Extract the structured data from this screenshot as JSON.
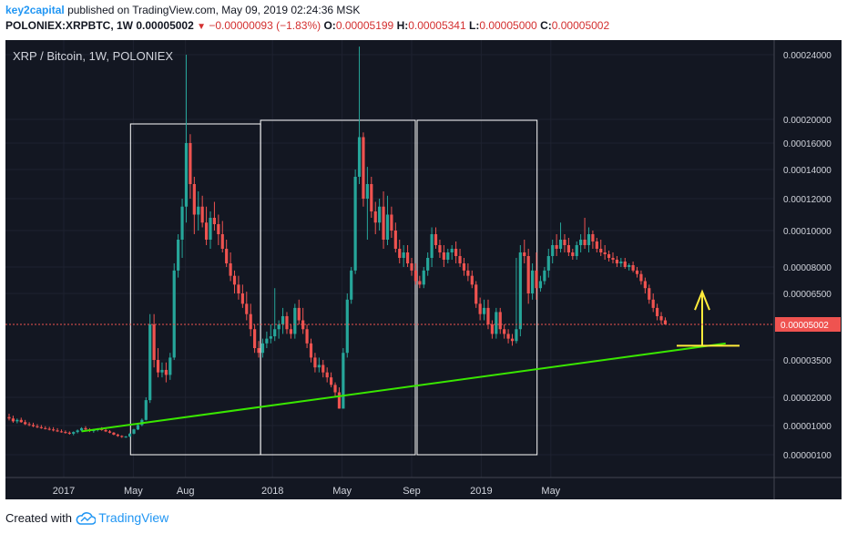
{
  "header": {
    "author": "key2capital",
    "published_text": "published on TradingView.com, May 09, 2019 02:24:36 MSK",
    "symbol": "POLONIEX:XRPBTC, 1W",
    "last": "0.00005002",
    "change": "−0.00000093 (−1.83%)",
    "open_label": "O:",
    "open": "0.00005199",
    "high_label": "H:",
    "high": "0.00005341",
    "low_label": "L:",
    "low": "0.00005000",
    "close_label": "C:",
    "close": "0.00005002"
  },
  "footer": {
    "created_with": "Created with",
    "brand": "TradingView"
  },
  "colors": {
    "background": "#131722",
    "up": "#26a69a",
    "down": "#ef5350",
    "trendline": "#39e600",
    "box": "#ffffff",
    "support": "#ffeb3b",
    "price_tag": "#ef5350"
  },
  "chart_data": {
    "type": "candlestick",
    "title": "XRP / Bitcoin, 1W, POLONIEX",
    "current_price_label": "0.00005002",
    "y_tick_labels": [
      "0.00024000",
      "0.00020000",
      "0.00016000",
      "0.00014000",
      "0.00012000",
      "0.00010000",
      "0.00008000",
      "0.00006500",
      "0.00003500",
      "0.00002000",
      "0.00001000",
      "0.00000100"
    ],
    "x_tick_labels": [
      "2017",
      "May",
      "Aug",
      "2018",
      "May",
      "Sep",
      "2019",
      "May"
    ],
    "candles": [
      [
        1.3e-05,
        1.42e-05,
        1.18e-05,
        1.25e-05
      ],
      [
        1.25e-05,
        1.35e-05,
        1.1e-05,
        1.15e-05
      ],
      [
        1.15e-05,
        1.25e-05,
        1.08e-05,
        1.2e-05
      ],
      [
        1.2e-05,
        1.28e-05,
        1.1e-05,
        1.12e-05
      ],
      [
        1.12e-05,
        1.2e-05,
        1.02e-05,
        1.05e-05
      ],
      [
        1.05e-05,
        1.12e-05,
        9.8e-06,
        1.02e-05
      ],
      [
        1.02e-05,
        1.1e-05,
        9.5e-06,
        9.8e-06
      ],
      [
        9.8e-06,
        1.05e-05,
        9.2e-06,
        9.5e-06
      ],
      [
        9.5e-06,
        1.02e-05,
        9e-06,
        9.2e-06
      ],
      [
        9.2e-06,
        9.8e-06,
        8.8e-06,
        9e-06
      ],
      [
        9e-06,
        9.6e-06,
        8.5e-06,
        8.8e-06
      ],
      [
        8.8e-06,
        9.5e-06,
        8.2e-06,
        8.5e-06
      ],
      [
        8.5e-06,
        9.2e-06,
        8e-06,
        8.2e-06
      ],
      [
        8.2e-06,
        8.8e-06,
        7.8e-06,
        8e-06
      ],
      [
        8e-06,
        8.5e-06,
        7.5e-06,
        7.8e-06
      ],
      [
        7.8e-06,
        8.2e-06,
        7.2e-06,
        7.5e-06
      ],
      [
        7.5e-06,
        8.2e-06,
        7e-06,
        8e-06
      ],
      [
        8e-06,
        8.8e-06,
        7.6e-06,
        8.5e-06
      ],
      [
        8.5e-06,
        9.5e-06,
        8.2e-06,
        9.2e-06
      ],
      [
        9.2e-06,
        9.8e-06,
        8.6e-06,
        8.8e-06
      ],
      [
        8.8e-06,
        9.2e-06,
        8e-06,
        8.3e-06
      ],
      [
        8.3e-06,
        9e-06,
        7.8e-06,
        8.6e-06
      ],
      [
        8.6e-06,
        9.2e-06,
        8.2e-06,
        9e-06
      ],
      [
        9e-06,
        9.5e-06,
        8.4e-06,
        8.6e-06
      ],
      [
        8.6e-06,
        9e-06,
        8e-06,
        8.2e-06
      ],
      [
        8.2e-06,
        8.6e-06,
        7.6e-06,
        7.8e-06
      ],
      [
        7.8e-06,
        8e-06,
        7e-06,
        7.2e-06
      ],
      [
        7.2e-06,
        7.5e-06,
        6.5e-06,
        6.8e-06
      ],
      [
        6.8e-06,
        7e-06,
        6.2e-06,
        6.5e-06
      ],
      [
        6.5e-06,
        6.8e-06,
        6.2e-06,
        6.6e-06
      ],
      [
        6.6e-06,
        7.8e-06,
        6.4e-06,
        7.5e-06
      ],
      [
        7.5e-06,
        9e-06,
        7.3e-06,
        8.8e-06
      ],
      [
        8.8e-06,
        1.05e-05,
        8.6e-06,
        1.02e-05
      ],
      [
        1.02e-05,
        1.25e-05,
        9.8e-06,
        1.2e-05
      ],
      [
        1.2e-05,
        2e-05,
        1.18e-05,
        1.9e-05
      ],
      [
        1.9e-05,
        5.5e-05,
        1.8e-05,
        5e-05
      ],
      [
        5e-05,
        5.5e-05,
        3.2e-05,
        3.5e-05
      ],
      [
        3.5e-05,
        4e-05,
        2.8e-05,
        3e-05
      ],
      [
        3e-05,
        3.4e-05,
        2.8e-05,
        3.1e-05
      ],
      [
        3.1e-05,
        3.4e-05,
        2.6e-05,
        2.9e-05
      ],
      [
        2.9e-05,
        3.8e-05,
        2.7e-05,
        3.6e-05
      ],
      [
        3.6e-05,
        8.2e-05,
        3.5e-05,
        7.8e-05
      ],
      [
        7.8e-05,
        9.8e-05,
        7.4e-05,
        9.5e-05
      ],
      [
        9.5e-05,
        0.00012,
        8.5e-05,
        0.000115
      ],
      [
        0.000115,
        0.00024,
        0.000105,
        0.00016
      ],
      [
        0.00016,
        0.000175,
        0.00012,
        0.00013
      ],
      [
        0.00013,
        0.000135,
        9.8e-05,
        0.00011
      ],
      [
        0.00011,
        0.000125,
        0.0001,
        0.000115
      ],
      [
        0.000115,
        0.000122,
        0.000102,
        0.000105
      ],
      [
        0.000105,
        0.000115,
        9.2e-05,
        9.5e-05
      ],
      [
        9.5e-05,
        0.000112,
        9e-05,
        0.000108
      ],
      [
        0.000108,
        0.000118,
        0.0001,
        0.000104
      ],
      [
        0.000104,
        0.00011,
        9.2e-05,
        9.8e-05
      ],
      [
        9.8e-05,
        0.000106,
        8.8e-05,
        9e-05
      ],
      [
        9e-05,
        9.5e-05,
        8e-05,
        8.2e-05
      ],
      [
        8.2e-05,
        8.8e-05,
        7.2e-05,
        7.5e-05
      ],
      [
        7.5e-05,
        7.8e-05,
        6.5e-05,
        7e-05
      ],
      [
        7e-05,
        7.5e-05,
        6.2e-05,
        6.5e-05
      ],
      [
        6.5e-05,
        7e-05,
        5.8e-05,
        6e-05
      ],
      [
        6e-05,
        6.6e-05,
        5.2e-05,
        5.5e-05
      ],
      [
        5.5e-05,
        6e-05,
        4.5e-05,
        4.8e-05
      ],
      [
        4.8e-05,
        5e-05,
        3.8e-05,
        4e-05
      ],
      [
        4e-05,
        4.3e-05,
        3.6e-05,
        3.8e-05
      ],
      [
        3.8e-05,
        4.4e-05,
        3.6e-05,
        4.2e-05
      ],
      [
        4.2e-05,
        4.7e-05,
        4e-05,
        4.4e-05
      ],
      [
        4.4e-05,
        5e-05,
        4.2e-05,
        4.5e-05
      ],
      [
        4.5e-05,
        6.8e-05,
        4.3e-05,
        4.8e-05
      ],
      [
        4.8e-05,
        5.2e-05,
        4.4e-05,
        5e-05
      ],
      [
        5e-05,
        5.8e-05,
        4.6e-05,
        5.4e-05
      ],
      [
        5.4e-05,
        5.6e-05,
        4.6e-05,
        4.8e-05
      ],
      [
        4.8e-05,
        5e-05,
        4.4e-05,
        4.6e-05
      ],
      [
        4.6e-05,
        6e-05,
        4.4e-05,
        5.8e-05
      ],
      [
        5.8e-05,
        6.2e-05,
        5e-05,
        5.2e-05
      ],
      [
        5.2e-05,
        5.8e-05,
        4.6e-05,
        4.8e-05
      ],
      [
        4.8e-05,
        5e-05,
        4e-05,
        4.2e-05
      ],
      [
        4.2e-05,
        4.4e-05,
        3.4e-05,
        3.6e-05
      ],
      [
        3.6e-05,
        3.8e-05,
        3e-05,
        3.2e-05
      ],
      [
        3.2e-05,
        3.6e-05,
        3e-05,
        3.3e-05
      ],
      [
        3.3e-05,
        3.5e-05,
        2.8e-05,
        3e-05
      ],
      [
        3e-05,
        3.2e-05,
        2.6e-05,
        2.8e-05
      ],
      [
        2.8e-05,
        3e-05,
        2.4e-05,
        2.5e-05
      ],
      [
        2.5e-05,
        2.6e-05,
        2e-05,
        2.2e-05
      ],
      [
        2.2e-05,
        2.4e-05,
        1.6e-05,
        1.6e-05
      ],
      [
        1.6e-05,
        4e-05,
        1.6e-05,
        3.8e-05
      ],
      [
        3.8e-05,
        6.5e-05,
        3.6e-05,
        6.2e-05
      ],
      [
        6.2e-05,
        8e-05,
        6e-05,
        7.8e-05
      ],
      [
        7.8e-05,
        0.00014,
        7.6e-05,
        0.000135
      ],
      [
        0.000135,
        0.000245,
        0.00013,
        0.00017
      ],
      [
        0.00017,
        0.000178,
        0.000115,
        0.00012
      ],
      [
        0.00012,
        0.000142,
        9.5e-05,
        0.00013
      ],
      [
        0.00013,
        0.000135,
        0.000108,
        0.000112
      ],
      [
        0.000112,
        0.000118,
        9.8e-05,
        0.000105
      ],
      [
        0.000105,
        0.00012,
        0.0001,
        0.000115
      ],
      [
        0.000115,
        0.000125,
        9e-05,
        9.5e-05
      ],
      [
        9.5e-05,
        0.000122,
        9.2e-05,
        0.00011
      ],
      [
        0.00011,
        0.000115,
        9.6e-05,
        0.0001
      ],
      [
        0.0001,
        0.000105,
        8.8e-05,
        9e-05
      ],
      [
        9e-05,
        9.5e-05,
        8.2e-05,
        8.5e-05
      ],
      [
        8.5e-05,
        9.2e-05,
        8e-05,
        8.8e-05
      ],
      [
        8.8e-05,
        9.2e-05,
        8e-05,
        8.2e-05
      ],
      [
        8.2e-05,
        8.5e-05,
        7.5e-05,
        7.8e-05
      ],
      [
        7.8e-05,
        8.2e-05,
        7e-05,
        7.2e-05
      ],
      [
        7.2e-05,
        7.5e-05,
        6.8e-05,
        7e-05
      ],
      [
        7e-05,
        8e-05,
        6.8e-05,
        7.8e-05
      ],
      [
        7.8e-05,
        8.8e-05,
        7.5e-05,
        8.5e-05
      ],
      [
        8.5e-05,
        0.000102,
        8e-05,
        9.8e-05
      ],
      [
        9.8e-05,
        0.000102,
        9e-05,
        9.2e-05
      ],
      [
        9.2e-05,
        9.5e-05,
        8.5e-05,
        8.8e-05
      ],
      [
        8.8e-05,
        9.2e-05,
        8e-05,
        8.4e-05
      ],
      [
        8.4e-05,
        9e-05,
        8.2e-05,
        8.8e-05
      ],
      [
        8.8e-05,
        9.2e-05,
        8.4e-05,
        9e-05
      ],
      [
        9e-05,
        9.4e-05,
        8.2e-05,
        8.6e-05
      ],
      [
        8.6e-05,
        9e-05,
        8e-05,
        8.2e-05
      ],
      [
        8.2e-05,
        8.5e-05,
        7.5e-05,
        7.8e-05
      ],
      [
        7.8e-05,
        8.2e-05,
        7.2e-05,
        7.5e-05
      ],
      [
        7.5e-05,
        7.8e-05,
        6.8e-05,
        7e-05
      ],
      [
        7e-05,
        7.2e-05,
        5.8e-05,
        6e-05
      ],
      [
        6e-05,
        6.3e-05,
        5.2e-05,
        5.5e-05
      ],
      [
        5.5e-05,
        6.2e-05,
        5.2e-05,
        5.8e-05
      ],
      [
        5.8e-05,
        6.2e-05,
        4.8e-05,
        5e-05
      ],
      [
        5e-05,
        5.2e-05,
        4.4e-05,
        4.6e-05
      ],
      [
        4.6e-05,
        5.8e-05,
        4.4e-05,
        5.6e-05
      ],
      [
        5.6e-05,
        5.8e-05,
        4.6e-05,
        4.8e-05
      ],
      [
        4.8e-05,
        5e-05,
        4.4e-05,
        4.6e-05
      ],
      [
        4.6e-05,
        4.8e-05,
        4.2e-05,
        4.4e-05
      ],
      [
        4.4e-05,
        4.6e-05,
        4.1e-05,
        4.3e-05
      ],
      [
        4.3e-05,
        8.5e-05,
        4.2e-05,
        4.8e-05
      ],
      [
        4.8e-05,
        9.2e-05,
        4.5e-05,
        8.8e-05
      ],
      [
        8.8e-05,
        9.5e-05,
        8.2e-05,
        8.6e-05
      ],
      [
        8.6e-05,
        9e-05,
        6e-05,
        6.5e-05
      ],
      [
        6.5e-05,
        8.2e-05,
        6.2e-05,
        7.8e-05
      ],
      [
        7.8e-05,
        8.8e-05,
        6.2e-05,
        6.8e-05
      ],
      [
        6.8e-05,
        7.5e-05,
        6.6e-05,
        7.2e-05
      ],
      [
        7.2e-05,
        8e-05,
        7e-05,
        7.8e-05
      ],
      [
        7.8e-05,
        9e-05,
        7.4e-05,
        8.6e-05
      ],
      [
        8.6e-05,
        9.5e-05,
        8.2e-05,
        9.2e-05
      ],
      [
        9.2e-05,
        9.8e-05,
        8.6e-05,
        9e-05
      ],
      [
        9e-05,
        0.000105,
        8.8e-05,
        9.5e-05
      ],
      [
        9.5e-05,
        9.8e-05,
        8.8e-05,
        9.2e-05
      ],
      [
        9.2e-05,
        9.6e-05,
        8.6e-05,
        8.8e-05
      ],
      [
        8.8e-05,
        9e-05,
        8.4e-05,
        8.6e-05
      ],
      [
        8.6e-05,
        9.4e-05,
        8.4e-05,
        9.2e-05
      ],
      [
        9.2e-05,
        9.8e-05,
        8.8e-05,
        9.5e-05
      ],
      [
        9.5e-05,
        0.000108,
        9e-05,
        9.2e-05
      ],
      [
        9.2e-05,
        0.000102,
        8.8e-05,
        9.8e-05
      ],
      [
        9.8e-05,
        0.0001,
        9e-05,
        9.4e-05
      ],
      [
        9.4e-05,
        9.6e-05,
        8.8e-05,
        9e-05
      ],
      [
        9e-05,
        9.5e-05,
        8.6e-05,
        8.8e-05
      ],
      [
        8.8e-05,
        9.2e-05,
        8.4e-05,
        8.7e-05
      ],
      [
        8.7e-05,
        8.9e-05,
        8.3e-05,
        8.5e-05
      ],
      [
        8.5e-05,
        8.8e-05,
        8.2e-05,
        8.4e-05
      ],
      [
        8.4e-05,
        8.6e-05,
        8e-05,
        8.2e-05
      ],
      [
        8.2e-05,
        8.5e-05,
        8e-05,
        8.3e-05
      ],
      [
        8.3e-05,
        8.5e-05,
        7.9e-05,
        8e-05
      ],
      [
        8e-05,
        8.2e-05,
        7.8e-05,
        8.1e-05
      ],
      [
        8.1e-05,
        8.3e-05,
        7.7e-05,
        7.8e-05
      ],
      [
        7.8e-05,
        8e-05,
        7.4e-05,
        7.6e-05
      ],
      [
        7.6e-05,
        7.8e-05,
        7e-05,
        7.2e-05
      ],
      [
        7.2e-05,
        7.4e-05,
        6.5e-05,
        6.8e-05
      ],
      [
        6.8e-05,
        7e-05,
        6e-05,
        6.2e-05
      ],
      [
        6.2e-05,
        6.5e-05,
        5.6e-05,
        5.8e-05
      ],
      [
        5.8e-05,
        6e-05,
        5.2e-05,
        5.4e-05
      ],
      [
        5.4e-05,
        5.6e-05,
        5e-05,
        5.199e-05
      ],
      [
        5.199e-05,
        5.341e-05,
        5e-05,
        5.002e-05
      ]
    ],
    "highlight_boxes": [
      {
        "from_date": "2017-04",
        "to_date": "2017-12"
      },
      {
        "from_date": "2017-12",
        "to_date": "2018-09"
      },
      {
        "from_date": "2018-09",
        "to_date": "2019-04"
      }
    ],
    "trendline": {
      "from": [
        18,
        8.2e-06
      ],
      "to": [
        178,
        4.2e-05
      ]
    },
    "support_level": 4.1e-05,
    "arrow_from": 4.1e-05,
    "arrow_to": 6.6e-05
  }
}
